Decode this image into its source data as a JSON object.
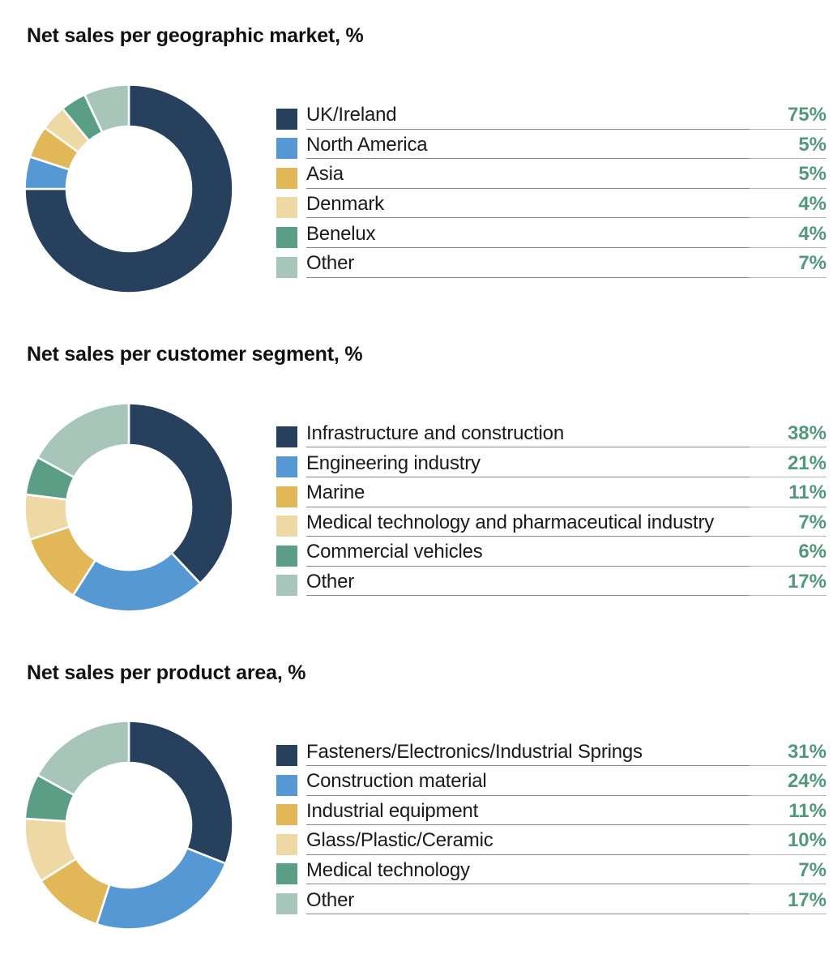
{
  "styles": {
    "percent_color": "#52997b",
    "title_color": "#111111",
    "label_color": "#1a1a1a",
    "palette": [
      "#27405e",
      "#5598d3",
      "#e2b757",
      "#eed8a4",
      "#5a9f85",
      "#a8c5b9"
    ]
  },
  "chart_data": [
    {
      "type": "pie",
      "variant": "donut",
      "title": "Net sales per geographic market, %",
      "unit": "%",
      "legend_position": "right",
      "start_angle_deg": 0,
      "direction": "clockwise",
      "categories": [
        "UK/Ireland",
        "North America",
        "Asia",
        "Denmark",
        "Benelux",
        "Other"
      ],
      "values": [
        75,
        5,
        5,
        4,
        4,
        7
      ],
      "value_labels": [
        "75%",
        "5%",
        "5%",
        "4%",
        "4%",
        "7%"
      ]
    },
    {
      "type": "pie",
      "variant": "donut",
      "title": "Net sales per customer segment, %",
      "unit": "%",
      "legend_position": "right",
      "start_angle_deg": 0,
      "direction": "clockwise",
      "categories": [
        "Infrastructure and construction",
        "Engineering industry",
        "Marine",
        "Medical technology and pharmaceutical industry",
        "Commercial vehicles",
        "Other"
      ],
      "values": [
        38,
        21,
        11,
        7,
        6,
        17
      ],
      "value_labels": [
        "38%",
        "21%",
        "11%",
        "7%",
        "6%",
        "17%"
      ]
    },
    {
      "type": "pie",
      "variant": "donut",
      "title": "Net sales per product area, %",
      "unit": "%",
      "legend_position": "right",
      "start_angle_deg": 0,
      "direction": "clockwise",
      "categories": [
        "Fasteners/Electronics/Industrial Springs",
        "Construction material",
        "Industrial equipment",
        "Glass/Plastic/Ceramic",
        "Medical technology",
        "Other"
      ],
      "values": [
        31,
        24,
        11,
        10,
        7,
        17
      ],
      "value_labels": [
        "31%",
        "24%",
        "11%",
        "10%",
        "7%",
        "17%"
      ]
    }
  ]
}
